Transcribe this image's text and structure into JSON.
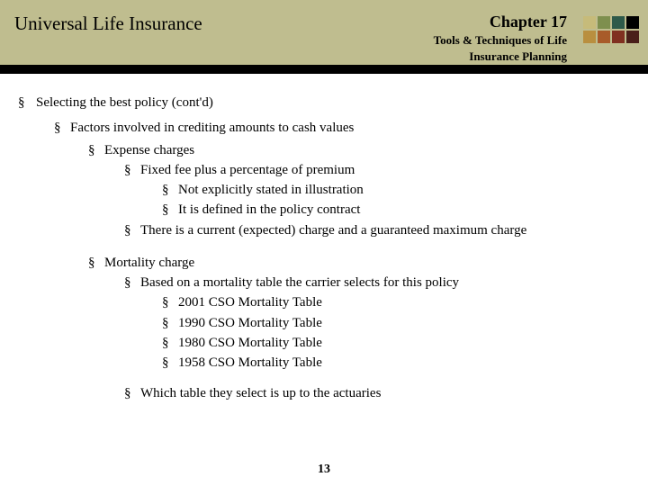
{
  "header": {
    "title": "Universal Life Insurance",
    "chapter": "Chapter 17",
    "subtitle_line1": "Tools & Techniques of Life",
    "subtitle_line2": "Insurance Planning",
    "logo_colors": [
      "#c6bb7a",
      "#7e8f4e",
      "#2e5a4a",
      "#000000",
      "#b98f3f",
      "#a85b2a",
      "#803020",
      "#4a1f1a"
    ]
  },
  "content": {
    "h1": "Selecting the best policy (cont'd)",
    "h2": "Factors involved in crediting amounts to cash values",
    "expense": {
      "title": "Expense charges",
      "sub1": "Fixed fee plus a percentage of premium",
      "sub1a": "Not explicitly stated in illustration",
      "sub1b": "It is defined in the policy contract",
      "sub2": "There is a current (expected) charge and a guaranteed maximum charge"
    },
    "mortality": {
      "title": "Mortality charge",
      "sub1": "Based on a mortality table the carrier selects for this policy",
      "t1": "2001 CSO Mortality Table",
      "t2": "1990 CSO Mortality Table",
      "t3": "1980 CSO Mortality Table",
      "t4": "1958 CSO Mortality Table",
      "note": "Which table they select is up to the actuaries"
    }
  },
  "page_number": "13"
}
